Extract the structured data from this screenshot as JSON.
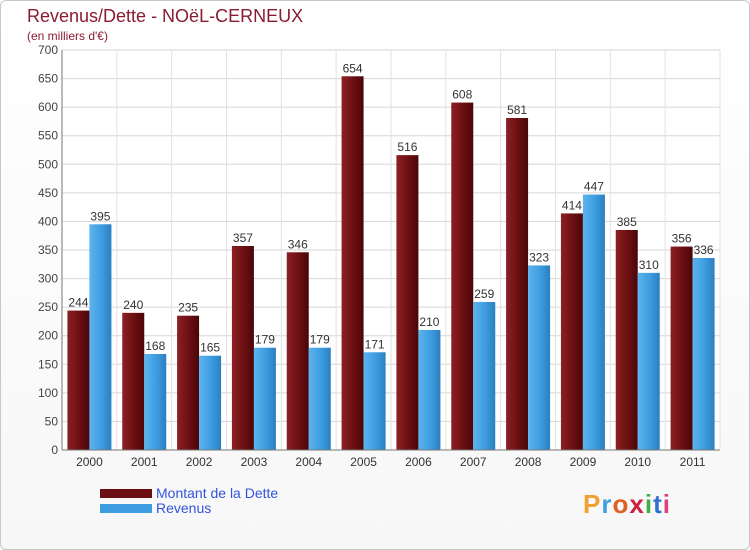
{
  "header": {
    "title": "Revenus/Dette - NOëL-CERNEUX",
    "subtitle": "(en milliers d'€)"
  },
  "colors": {
    "dette": "#6b0f12",
    "revenus": "#3d9de0",
    "title": "#8a1c33",
    "legend_text": "#3355dd"
  },
  "chart_data": {
    "type": "bar",
    "title": "Revenus/Dette - NOëL-CERNEUX",
    "subtitle": "(en milliers d'€)",
    "categories": [
      "2000",
      "2001",
      "2002",
      "2003",
      "2004",
      "2005",
      "2006",
      "2007",
      "2008",
      "2009",
      "2010",
      "2011"
    ],
    "series": [
      {
        "name": "Montant de la Dette",
        "values": [
          244,
          240,
          235,
          357,
          346,
          654,
          516,
          608,
          581,
          414,
          385,
          356
        ]
      },
      {
        "name": "Revenus",
        "values": [
          395,
          168,
          165,
          179,
          179,
          171,
          210,
          259,
          323,
          447,
          310,
          336
        ]
      }
    ],
    "ylim": [
      0,
      700
    ],
    "yticks": [
      0,
      50,
      100,
      150,
      200,
      250,
      300,
      350,
      400,
      450,
      500,
      550,
      600,
      650,
      700
    ],
    "grid": true,
    "legend_position": "bottom-left"
  },
  "legend": {
    "items": [
      {
        "label": "Montant de la Dette"
      },
      {
        "label": "Revenus"
      }
    ]
  },
  "logo": {
    "text": "Proxiti",
    "letter_colors": [
      "#f0a030",
      "#40a0e0",
      "#e06020",
      "#d02040",
      "#40b040",
      "#3070d0",
      "#e04080"
    ]
  }
}
